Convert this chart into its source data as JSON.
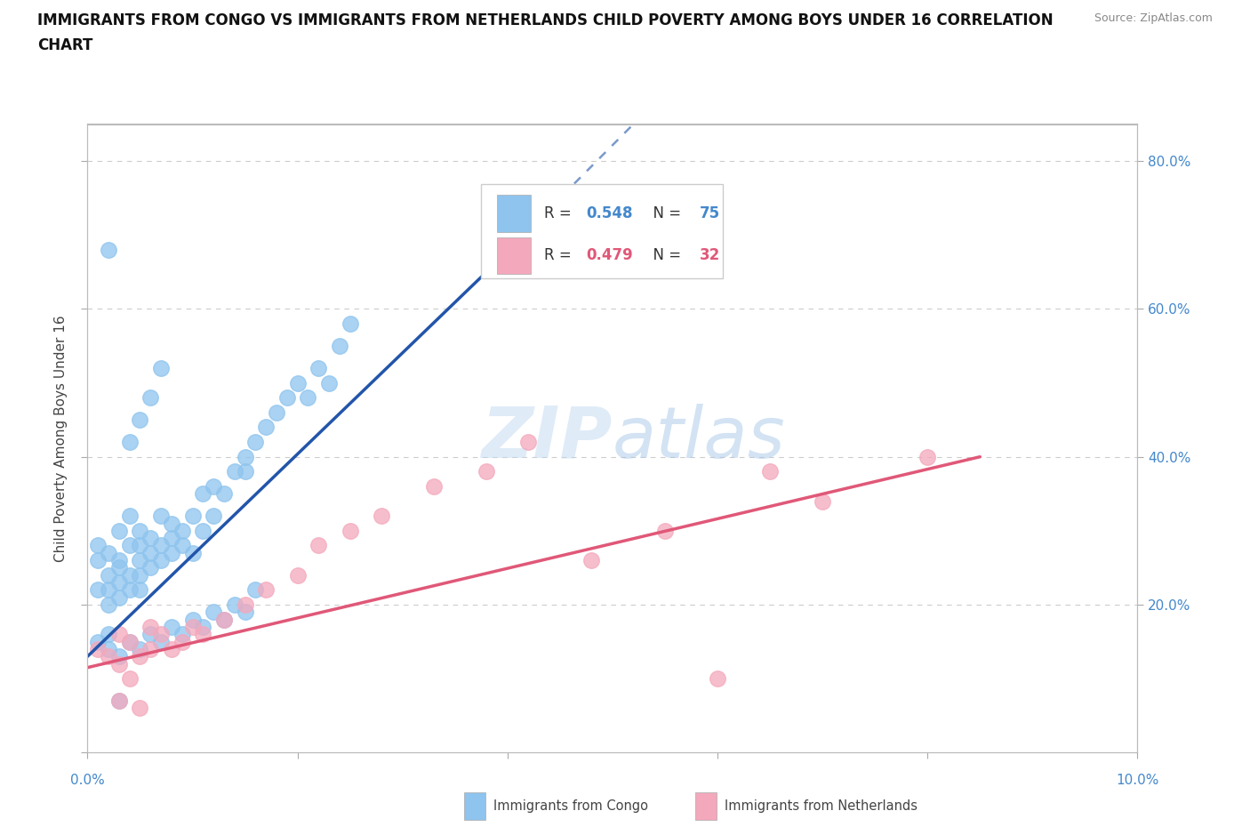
{
  "title": "IMMIGRANTS FROM CONGO VS IMMIGRANTS FROM NETHERLANDS CHILD POVERTY AMONG BOYS UNDER 16 CORRELATION\nCHART",
  "source": "Source: ZipAtlas.com",
  "ylabel": "Child Poverty Among Boys Under 16",
  "xlim": [
    0.0,
    0.1
  ],
  "ylim": [
    0.0,
    0.85
  ],
  "ytick_vals": [
    0.0,
    0.2,
    0.4,
    0.6,
    0.8
  ],
  "xtick_vals": [
    0.0,
    0.02,
    0.04,
    0.06,
    0.08,
    0.1
  ],
  "right_ytick_vals": [
    0.2,
    0.4,
    0.6,
    0.8
  ],
  "right_yticklabels": [
    "20.0%",
    "40.0%",
    "60.0%",
    "80.0%"
  ],
  "R_congo": 0.548,
  "N_congo": 75,
  "R_netherlands": 0.479,
  "N_netherlands": 32,
  "congo_color": "#8EC4EE",
  "netherlands_color": "#F4A8BC",
  "trendline_congo_color": "#2255AA",
  "trendline_netherlands_color": "#E05878",
  "watermark_zip": "ZIP",
  "watermark_atlas": "atlas",
  "background_color": "#FFFFFF",
  "gridline_color": "#CCCCCC",
  "tick_color": "#4488CC",
  "congo_x": [
    0.001,
    0.001,
    0.001,
    0.002,
    0.002,
    0.002,
    0.002,
    0.003,
    0.003,
    0.003,
    0.003,
    0.003,
    0.004,
    0.004,
    0.004,
    0.004,
    0.005,
    0.005,
    0.005,
    0.005,
    0.005,
    0.006,
    0.006,
    0.006,
    0.007,
    0.007,
    0.007,
    0.008,
    0.008,
    0.008,
    0.009,
    0.009,
    0.01,
    0.01,
    0.011,
    0.011,
    0.012,
    0.012,
    0.013,
    0.014,
    0.015,
    0.015,
    0.016,
    0.017,
    0.018,
    0.019,
    0.02,
    0.021,
    0.022,
    0.023,
    0.024,
    0.025,
    0.001,
    0.002,
    0.002,
    0.003,
    0.004,
    0.005,
    0.006,
    0.007,
    0.008,
    0.009,
    0.01,
    0.011,
    0.012,
    0.013,
    0.014,
    0.015,
    0.016,
    0.004,
    0.005,
    0.006,
    0.007,
    0.002,
    0.003
  ],
  "congo_y": [
    0.26,
    0.22,
    0.28,
    0.24,
    0.2,
    0.22,
    0.27,
    0.23,
    0.25,
    0.21,
    0.26,
    0.3,
    0.22,
    0.24,
    0.28,
    0.32,
    0.22,
    0.24,
    0.26,
    0.3,
    0.28,
    0.25,
    0.27,
    0.29,
    0.26,
    0.28,
    0.32,
    0.27,
    0.29,
    0.31,
    0.28,
    0.3,
    0.27,
    0.32,
    0.3,
    0.35,
    0.32,
    0.36,
    0.35,
    0.38,
    0.38,
    0.4,
    0.42,
    0.44,
    0.46,
    0.48,
    0.5,
    0.48,
    0.52,
    0.5,
    0.55,
    0.58,
    0.15,
    0.14,
    0.16,
    0.13,
    0.15,
    0.14,
    0.16,
    0.15,
    0.17,
    0.16,
    0.18,
    0.17,
    0.19,
    0.18,
    0.2,
    0.19,
    0.22,
    0.42,
    0.45,
    0.48,
    0.52,
    0.68,
    0.07
  ],
  "netherlands_x": [
    0.001,
    0.002,
    0.003,
    0.003,
    0.004,
    0.004,
    0.005,
    0.006,
    0.006,
    0.007,
    0.008,
    0.009,
    0.01,
    0.011,
    0.013,
    0.015,
    0.017,
    0.02,
    0.022,
    0.025,
    0.028,
    0.033,
    0.038,
    0.042,
    0.048,
    0.055,
    0.06,
    0.065,
    0.07,
    0.08,
    0.003,
    0.005
  ],
  "netherlands_y": [
    0.14,
    0.13,
    0.12,
    0.16,
    0.15,
    0.1,
    0.13,
    0.14,
    0.17,
    0.16,
    0.14,
    0.15,
    0.17,
    0.16,
    0.18,
    0.2,
    0.22,
    0.24,
    0.28,
    0.3,
    0.32,
    0.36,
    0.38,
    0.42,
    0.26,
    0.3,
    0.1,
    0.38,
    0.34,
    0.4,
    0.07,
    0.06
  ],
  "congo_trend_x0": 0.0,
  "congo_trend_y0": 0.13,
  "congo_trend_x1": 0.038,
  "congo_trend_y1": 0.65,
  "congo_trend_dash_x1": 0.052,
  "congo_trend_dash_y1": 0.85,
  "neth_trend_x0": 0.0,
  "neth_trend_y0": 0.115,
  "neth_trend_x1": 0.085,
  "neth_trend_y1": 0.4,
  "legend_R_color": "#4488CC",
  "legend_N_color": "#4488CC",
  "legend_R2_color": "#E05878",
  "legend_N2_color": "#E05878"
}
